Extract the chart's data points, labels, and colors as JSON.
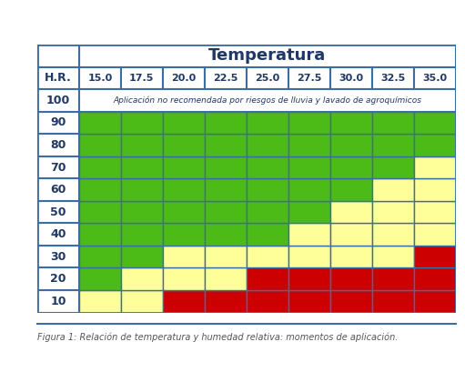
{
  "title": "Temperatura",
  "hr_label": "H.R.",
  "temp_cols": [
    15.0,
    17.5,
    20.0,
    22.5,
    25.0,
    27.5,
    30.0,
    32.5,
    35.0
  ],
  "hr_rows": [
    100,
    90,
    80,
    70,
    60,
    50,
    40,
    30,
    20,
    10
  ],
  "special_row_100_text": "Aplicación no recomendada por riesgos de lluvia y lavado de agroquímicos",
  "caption": "Figura 1: Relación de temperatura y humedad relativa: momentos de aplicación.",
  "colors": {
    "green": "#4CBB17",
    "yellow": "#FFFF99",
    "red": "#CC0000",
    "white": "#FFFFFF",
    "border": "#3A6EA5",
    "header_bg": "#FFFFFF",
    "text_dark": "#1F3864"
  },
  "cell_colors": {
    "90": [
      "G",
      "G",
      "G",
      "G",
      "G",
      "G",
      "G",
      "G",
      "G"
    ],
    "80": [
      "G",
      "G",
      "G",
      "G",
      "G",
      "G",
      "G",
      "G",
      "G"
    ],
    "70": [
      "G",
      "G",
      "G",
      "G",
      "G",
      "G",
      "G",
      "G",
      "Y"
    ],
    "60": [
      "G",
      "G",
      "G",
      "G",
      "G",
      "G",
      "G",
      "Y",
      "Y"
    ],
    "50": [
      "G",
      "G",
      "G",
      "G",
      "G",
      "G",
      "Y",
      "Y",
      "Y"
    ],
    "40": [
      "G",
      "G",
      "G",
      "G",
      "G",
      "Y",
      "Y",
      "Y",
      "Y"
    ],
    "30": [
      "G",
      "G",
      "Y",
      "Y",
      "Y",
      "Y",
      "Y",
      "Y",
      "R"
    ],
    "20": [
      "G",
      "Y",
      "Y",
      "Y",
      "R",
      "R",
      "R",
      "R",
      "R"
    ],
    "10": [
      "Y",
      "Y",
      "R",
      "R",
      "R",
      "R",
      "R",
      "R",
      "R"
    ]
  }
}
